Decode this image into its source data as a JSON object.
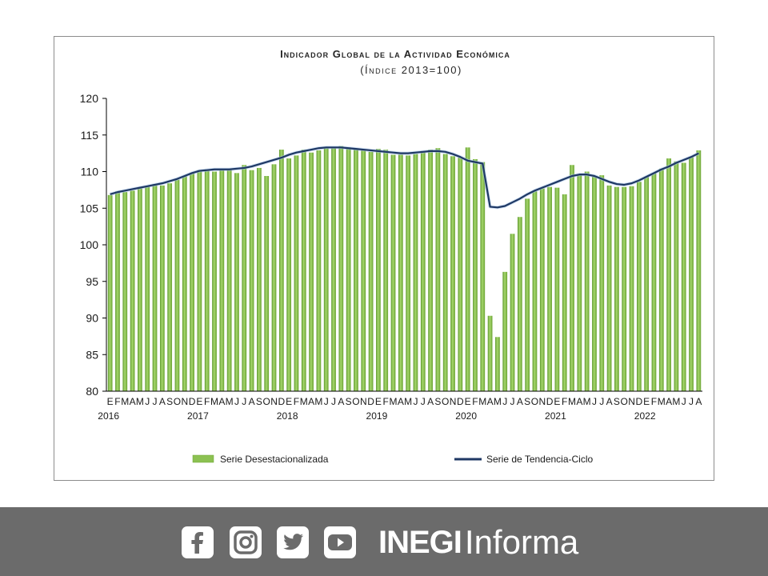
{
  "chart_data": {
    "type": "bar",
    "title": "Indicador Global de la Actividad Económica",
    "subtitle": "(Índice 2013=100)",
    "ylim": [
      80,
      120
    ],
    "yticks": [
      80,
      85,
      90,
      95,
      100,
      105,
      110,
      115,
      120
    ],
    "x_month_labels": [
      "E",
      "F",
      "M",
      "A",
      "M",
      "J",
      "J",
      "A",
      "S",
      "O",
      "N",
      "D"
    ],
    "x_year_labels": [
      "2016",
      "2017",
      "2018",
      "2019",
      "2020",
      "2021",
      "2022"
    ],
    "categories_start": "2016-01",
    "categories_end": "2022-08",
    "grid": false,
    "legend_position": "bottom",
    "series": [
      {
        "name": "Serie Desestacionalizada",
        "kind": "bar",
        "color": "#8cc152",
        "values": [
          106.8,
          107.3,
          107.2,
          107.4,
          107.7,
          108.0,
          108.3,
          108.1,
          108.4,
          108.9,
          109.4,
          109.8,
          110.2,
          110.3,
          110.0,
          110.2,
          110.3,
          109.8,
          110.9,
          110.2,
          110.5,
          109.4,
          111.0,
          113.0,
          111.8,
          112.2,
          113.0,
          112.6,
          112.9,
          113.2,
          113.3,
          113.5,
          113.3,
          113.1,
          112.9,
          112.7,
          113.1,
          113.0,
          112.3,
          112.3,
          112.2,
          112.4,
          112.8,
          113.0,
          113.2,
          112.4,
          112.1,
          111.9,
          113.3,
          111.7,
          111.3,
          90.3,
          87.4,
          96.3,
          101.5,
          103.8,
          106.3,
          107.3,
          107.7,
          107.9,
          107.8,
          106.9,
          110.9,
          109.6,
          110.0,
          109.3,
          109.5,
          108.1,
          107.9,
          107.9,
          108.0,
          108.6,
          109.3,
          109.8,
          110.4,
          111.8,
          111.4,
          111.2,
          112.0,
          112.9
        ]
      },
      {
        "name": "Serie de Tendencia-Ciclo",
        "kind": "line",
        "color": "#1f3864",
        "values": [
          106.9,
          107.2,
          107.4,
          107.6,
          107.8,
          108.0,
          108.2,
          108.4,
          108.7,
          109.0,
          109.4,
          109.8,
          110.1,
          110.2,
          110.3,
          110.3,
          110.3,
          110.4,
          110.5,
          110.7,
          111.0,
          111.3,
          111.6,
          111.9,
          112.3,
          112.6,
          112.8,
          113.0,
          113.2,
          113.3,
          113.3,
          113.3,
          113.2,
          113.1,
          113.0,
          112.9,
          112.8,
          112.7,
          112.6,
          112.5,
          112.5,
          112.6,
          112.7,
          112.8,
          112.8,
          112.7,
          112.4,
          112.0,
          111.5,
          111.3,
          111.1,
          105.2,
          105.1,
          105.3,
          105.8,
          106.3,
          106.9,
          107.4,
          107.8,
          108.2,
          108.6,
          109.0,
          109.4,
          109.6,
          109.6,
          109.4,
          109.0,
          108.6,
          108.3,
          108.2,
          108.4,
          108.8,
          109.3,
          109.8,
          110.3,
          110.7,
          111.2,
          111.6,
          112.0,
          112.5
        ]
      }
    ]
  },
  "legend": {
    "bar_label": "Serie Desestacionalizada",
    "line_label": "Serie de Tendencia-Ciclo"
  },
  "footer": {
    "background": "#6b6b6b",
    "icons": [
      "facebook-icon",
      "instagram-icon",
      "twitter-icon",
      "youtube-icon"
    ],
    "brand_bold": "INEGI",
    "brand_light": "Informa"
  }
}
